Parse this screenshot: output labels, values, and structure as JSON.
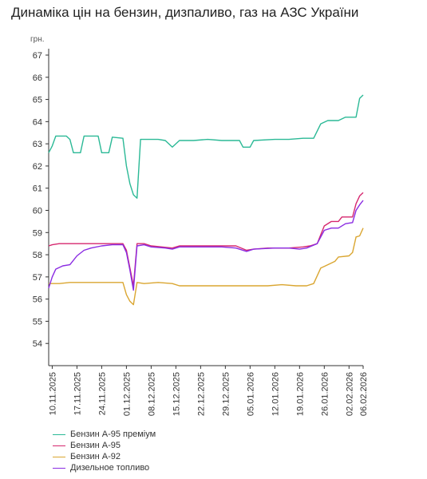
{
  "chart_data": {
    "type": "line",
    "title": "Динаміка цін на бензин, дизпаливо, газ на АЗС України",
    "ylabel": "грн.",
    "xlabel": "",
    "ylim": [
      53,
      67
    ],
    "yticks": [
      54,
      55,
      56,
      57,
      58,
      59,
      60,
      61,
      62,
      63,
      64,
      65,
      66,
      67
    ],
    "x_range": [
      "2025-11-09",
      "2026-02-06"
    ],
    "xticks": [
      "10.11.2025",
      "17.11.2025",
      "24.11.2025",
      "01.12.2025",
      "08.12.2025",
      "15.12.2025",
      "22.12.2025",
      "29.12.2025",
      "05.01.2026",
      "12.01.2026",
      "19.01.2026",
      "26.01.2026",
      "02.02.2026",
      "06.02.2026"
    ],
    "grid": false,
    "legend_position": "bottom-left",
    "series": [
      {
        "name": "Бензин А-95 преміум",
        "color": "#2bb996",
        "points": [
          [
            "2025-11-09",
            62.6
          ],
          [
            "2025-11-10",
            62.9
          ],
          [
            "2025-11-11",
            63.35
          ],
          [
            "2025-11-14",
            63.35
          ],
          [
            "2025-11-15",
            63.2
          ],
          [
            "2025-11-16",
            62.6
          ],
          [
            "2025-11-18",
            62.6
          ],
          [
            "2025-11-19",
            63.35
          ],
          [
            "2025-11-23",
            63.35
          ],
          [
            "2025-11-24",
            62.6
          ],
          [
            "2025-11-26",
            62.6
          ],
          [
            "2025-11-27",
            63.3
          ],
          [
            "2025-11-30",
            63.25
          ],
          [
            "2025-12-01",
            62.0
          ],
          [
            "2025-12-02",
            61.2
          ],
          [
            "2025-12-03",
            60.7
          ],
          [
            "2025-12-04",
            60.55
          ],
          [
            "2025-12-05",
            63.2
          ],
          [
            "2025-12-06",
            63.2
          ],
          [
            "2025-12-10",
            63.2
          ],
          [
            "2025-12-12",
            63.15
          ],
          [
            "2025-12-14",
            62.85
          ],
          [
            "2025-12-16",
            63.15
          ],
          [
            "2025-12-20",
            63.15
          ],
          [
            "2025-12-24",
            63.2
          ],
          [
            "2025-12-28",
            63.15
          ],
          [
            "2026-01-02",
            63.15
          ],
          [
            "2026-01-03",
            62.85
          ],
          [
            "2026-01-05",
            62.85
          ],
          [
            "2026-01-06",
            63.15
          ],
          [
            "2026-01-12",
            63.2
          ],
          [
            "2026-01-16",
            63.2
          ],
          [
            "2026-01-20",
            63.25
          ],
          [
            "2026-01-23",
            63.25
          ],
          [
            "2026-01-25",
            63.9
          ],
          [
            "2026-01-27",
            64.05
          ],
          [
            "2026-01-30",
            64.05
          ],
          [
            "2026-02-01",
            64.2
          ],
          [
            "2026-02-04",
            64.2
          ],
          [
            "2026-02-05",
            65.05
          ],
          [
            "2026-02-06",
            65.2
          ]
        ]
      },
      {
        "name": "Бензин А-95",
        "color": "#d6286f",
        "points": [
          [
            "2025-11-09",
            58.4
          ],
          [
            "2025-11-10",
            58.45
          ],
          [
            "2025-11-12",
            58.5
          ],
          [
            "2025-11-20",
            58.5
          ],
          [
            "2025-11-27",
            58.5
          ],
          [
            "2025-11-30",
            58.5
          ],
          [
            "2025-12-01",
            58.2
          ],
          [
            "2025-12-02",
            57.4
          ],
          [
            "2025-12-03",
            56.6
          ],
          [
            "2025-12-04",
            58.5
          ],
          [
            "2025-12-06",
            58.5
          ],
          [
            "2025-12-08",
            58.4
          ],
          [
            "2025-12-14",
            58.3
          ],
          [
            "2025-12-16",
            58.4
          ],
          [
            "2025-12-24",
            58.4
          ],
          [
            "2026-01-01",
            58.4
          ],
          [
            "2026-01-04",
            58.2
          ],
          [
            "2026-01-06",
            58.25
          ],
          [
            "2026-01-10",
            58.3
          ],
          [
            "2026-01-16",
            58.3
          ],
          [
            "2026-01-20",
            58.35
          ],
          [
            "2026-01-22",
            58.4
          ],
          [
            "2026-01-24",
            58.5
          ],
          [
            "2026-01-26",
            59.3
          ],
          [
            "2026-01-28",
            59.5
          ],
          [
            "2026-01-30",
            59.5
          ],
          [
            "2026-01-31",
            59.7
          ],
          [
            "2026-02-03",
            59.7
          ],
          [
            "2026-02-04",
            60.3
          ],
          [
            "2026-02-05",
            60.65
          ],
          [
            "2026-02-06",
            60.8
          ]
        ]
      },
      {
        "name": "Бензин А-92",
        "color": "#daa631",
        "points": [
          [
            "2025-11-09",
            56.7
          ],
          [
            "2025-11-12",
            56.7
          ],
          [
            "2025-11-15",
            56.75
          ],
          [
            "2025-11-20",
            56.75
          ],
          [
            "2025-11-27",
            56.75
          ],
          [
            "2025-11-30",
            56.75
          ],
          [
            "2025-12-01",
            56.2
          ],
          [
            "2025-12-02",
            55.9
          ],
          [
            "2025-12-03",
            55.75
          ],
          [
            "2025-12-04",
            56.75
          ],
          [
            "2025-12-06",
            56.7
          ],
          [
            "2025-12-10",
            56.75
          ],
          [
            "2025-12-14",
            56.7
          ],
          [
            "2025-12-16",
            56.6
          ],
          [
            "2025-12-18",
            56.6
          ],
          [
            "2025-12-22",
            56.6
          ],
          [
            "2025-12-28",
            56.6
          ],
          [
            "2026-01-04",
            56.6
          ],
          [
            "2026-01-10",
            56.6
          ],
          [
            "2026-01-14",
            56.65
          ],
          [
            "2026-01-18",
            56.6
          ],
          [
            "2026-01-21",
            56.6
          ],
          [
            "2026-01-23",
            56.7
          ],
          [
            "2026-01-25",
            57.4
          ],
          [
            "2026-01-27",
            57.55
          ],
          [
            "2026-01-29",
            57.7
          ],
          [
            "2026-01-30",
            57.9
          ],
          [
            "2026-02-02",
            57.95
          ],
          [
            "2026-02-03",
            58.1
          ],
          [
            "2026-02-04",
            58.8
          ],
          [
            "2026-02-05",
            58.85
          ],
          [
            "2026-02-06",
            59.2
          ]
        ]
      },
      {
        "name": "Дизельное топливо",
        "color": "#8a2be2",
        "points": [
          [
            "2025-11-09",
            56.5
          ],
          [
            "2025-11-10",
            57.0
          ],
          [
            "2025-11-11",
            57.35
          ],
          [
            "2025-11-13",
            57.5
          ],
          [
            "2025-11-15",
            57.55
          ],
          [
            "2025-11-17",
            57.95
          ],
          [
            "2025-11-19",
            58.2
          ],
          [
            "2025-11-21",
            58.3
          ],
          [
            "2025-11-24",
            58.4
          ],
          [
            "2025-11-27",
            58.45
          ],
          [
            "2025-11-30",
            58.45
          ],
          [
            "2025-12-01",
            58.1
          ],
          [
            "2025-12-02",
            57.3
          ],
          [
            "2025-12-03",
            56.4
          ],
          [
            "2025-12-04",
            58.4
          ],
          [
            "2025-12-06",
            58.45
          ],
          [
            "2025-12-08",
            58.35
          ],
          [
            "2025-12-12",
            58.3
          ],
          [
            "2025-12-14",
            58.25
          ],
          [
            "2025-12-16",
            58.35
          ],
          [
            "2025-12-22",
            58.35
          ],
          [
            "2025-12-28",
            58.35
          ],
          [
            "2026-01-01",
            58.3
          ],
          [
            "2026-01-04",
            58.15
          ],
          [
            "2026-01-06",
            58.25
          ],
          [
            "2026-01-12",
            58.3
          ],
          [
            "2026-01-16",
            58.3
          ],
          [
            "2026-01-19",
            58.25
          ],
          [
            "2026-01-21",
            58.3
          ],
          [
            "2026-01-24",
            58.5
          ],
          [
            "2026-01-26",
            59.1
          ],
          [
            "2026-01-28",
            59.2
          ],
          [
            "2026-01-30",
            59.2
          ],
          [
            "2026-02-01",
            59.4
          ],
          [
            "2026-02-03",
            59.45
          ],
          [
            "2026-02-04",
            60.0
          ],
          [
            "2026-02-05",
            60.25
          ],
          [
            "2026-02-06",
            60.45
          ]
        ]
      }
    ]
  }
}
